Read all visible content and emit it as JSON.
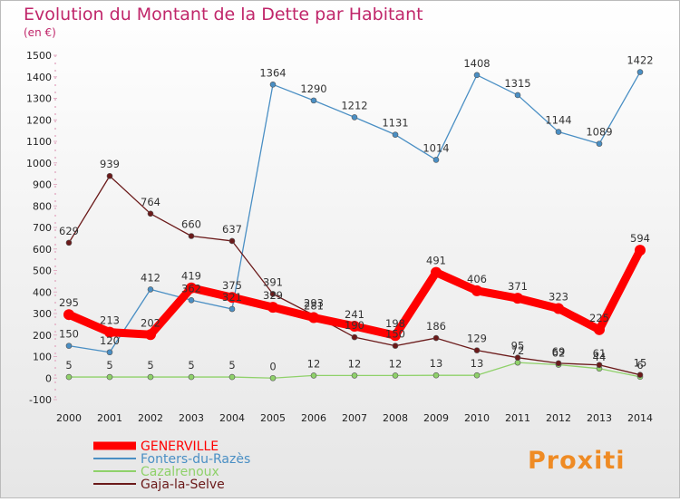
{
  "chart_data": {
    "type": "line",
    "title": "Evolution du Montant de la Dette par Habitant",
    "subtitle": "(en €)",
    "x": [
      "2000",
      "2001",
      "2002",
      "2003",
      "2004",
      "2005",
      "2006",
      "2007",
      "2008",
      "2009",
      "2010",
      "2011",
      "2012",
      "2013",
      "2014"
    ],
    "ylim": [
      -100,
      1500
    ],
    "yticks": [
      -100,
      0,
      100,
      200,
      300,
      400,
      500,
      600,
      700,
      800,
      900,
      1000,
      1100,
      1200,
      1300,
      1400,
      1500
    ],
    "grid": false,
    "legend_position": "bottom-left",
    "series": [
      {
        "name": "GENERVILLE",
        "color": "#ff0000",
        "values": [
          295,
          213,
          202,
          419,
          375,
          329,
          281,
          241,
          198,
          491,
          406,
          371,
          323,
          225,
          594
        ]
      },
      {
        "name": "Fonters-du-Razès",
        "color": "#4a8fc4",
        "values": [
          150,
          120,
          412,
          362,
          321,
          1364,
          1290,
          1212,
          1131,
          1014,
          1408,
          1315,
          1144,
          1089,
          1422
        ]
      },
      {
        "name": "Cazalrenoux",
        "color": "#8fd16a",
        "values": [
          5,
          5,
          5,
          5,
          5,
          0,
          12,
          12,
          12,
          13,
          13,
          72,
          62,
          44,
          6
        ]
      },
      {
        "name": "Gaja-la-Selve",
        "color": "#6b1a1a",
        "values": [
          629,
          939,
          764,
          660,
          637,
          391,
          293,
          190,
          150,
          186,
          129,
          95,
          69,
          61,
          15
        ]
      }
    ]
  },
  "logo": {
    "text": "Proxiti"
  }
}
